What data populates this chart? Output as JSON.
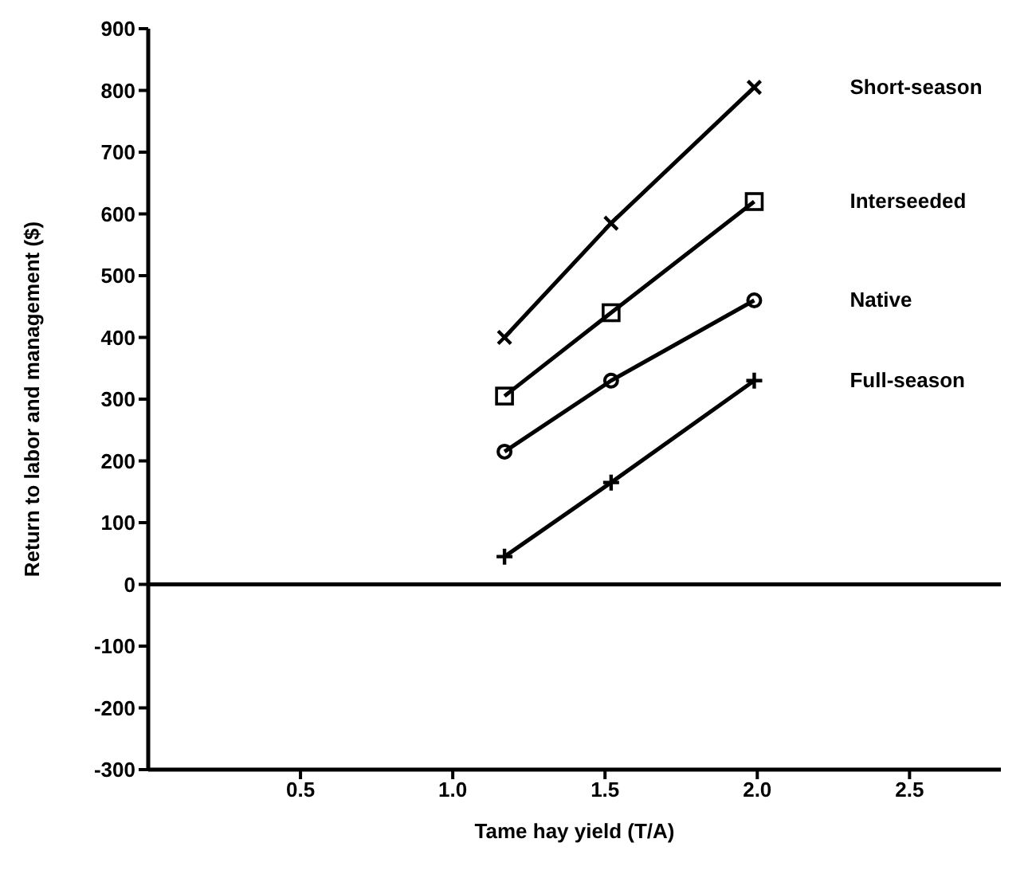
{
  "chart_data": {
    "type": "line",
    "xlabel": "Tame hay yield (T/A)",
    "ylabel": "Return to labor and management ($)",
    "xlim": [
      0,
      2.8
    ],
    "xticks": [
      0.5,
      {
        "value": 1,
        "label": "1.0"
      },
      1.5,
      {
        "value": 2,
        "label": "2.0"
      },
      2.5
    ],
    "ylim": [
      -300,
      900
    ],
    "yticks": [
      -300,
      -200,
      -100,
      0,
      100,
      200,
      300,
      400,
      500,
      600,
      700,
      800,
      900
    ],
    "grid": false,
    "legend": false,
    "line_style": "solid",
    "ref_lines": [
      {
        "axis": "y",
        "value": 0,
        "color": "#000000",
        "line_style": "solid"
      }
    ],
    "series": [
      {
        "name": "Short-season",
        "color": "#000000",
        "marker": "cross",
        "x": [
          1.17,
          1.52,
          1.99
        ],
        "values": [
          400,
          585,
          805
        ]
      },
      {
        "name": "Interseeded",
        "color": "#000000",
        "marker": "square",
        "x": [
          1.17,
          1.52,
          1.99
        ],
        "values": [
          305,
          440,
          620
        ]
      },
      {
        "name": "Native",
        "color": "#000000",
        "marker": "circle",
        "x": [
          1.17,
          1.52,
          1.99
        ],
        "values": [
          215,
          330,
          460
        ]
      },
      {
        "name": "Full-season",
        "color": "#000000",
        "marker": "plus",
        "x": [
          1.17,
          1.52,
          1.99
        ],
        "values": [
          45,
          165,
          330
        ]
      }
    ]
  }
}
